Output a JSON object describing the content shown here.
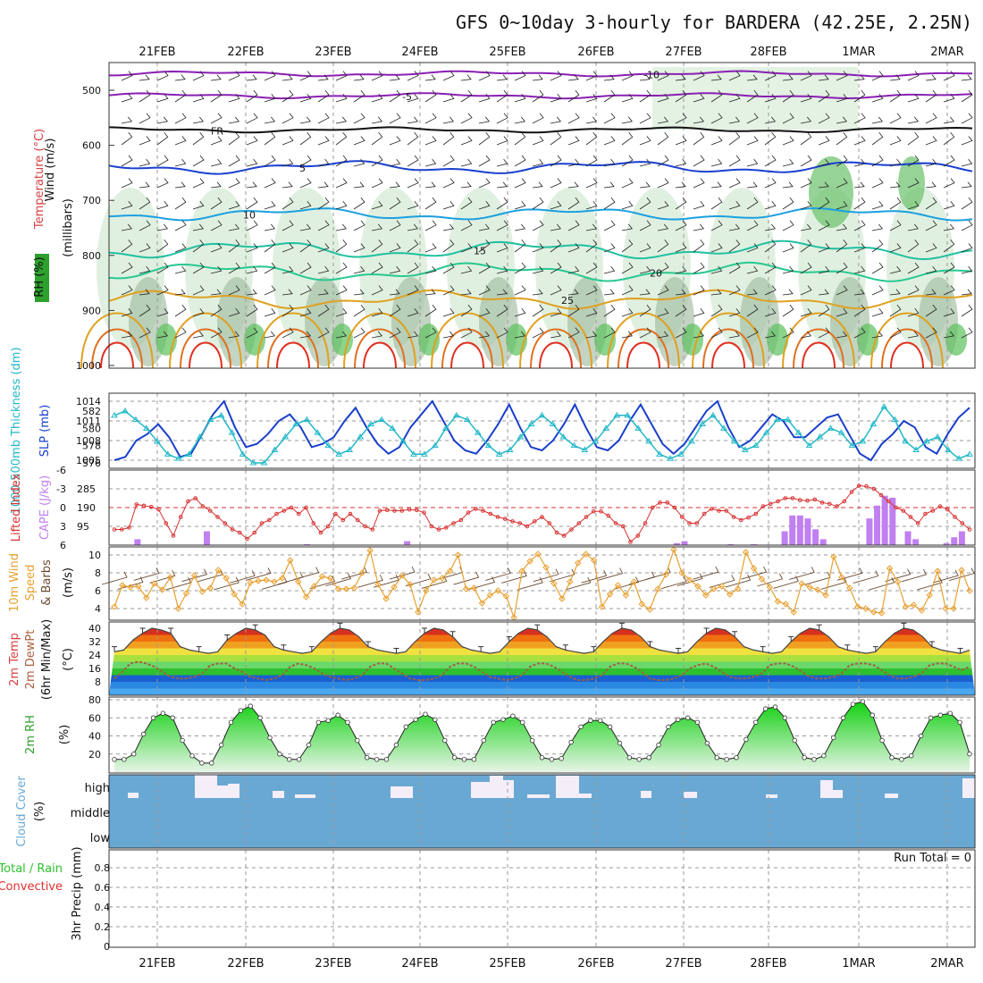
{
  "title": "GFS 0~10day 3-hourly for BARDERA (42.25E, 2.25N)",
  "dates": [
    "21FEB",
    "22FEB",
    "23FEB",
    "24FEB",
    "25FEB",
    "26FEB",
    "27FEB",
    "28FEB",
    "1MAR",
    "2MAR"
  ],
  "colors": {
    "rh_green": "#2ea02e",
    "temp_purple": "#8a1fb4",
    "temp_blue": "#1a3fd0",
    "temp_cyan": "#1aa0e0",
    "temp_teal": "#20c0a0",
    "temp_orange": "#e0a020",
    "temp_red": "#e03020",
    "slp_line": "#1a3fcc",
    "thickness_line": "#22b8c8",
    "lifted_line": "#d83030",
    "cape_bar": "#c080f0",
    "wind_line": "#e8a030",
    "barb": "#6a4a30",
    "cloud_fill": "#6aa8d4",
    "cloud_high": "#f4eef8",
    "precip_total": "#2ec02e",
    "precip_conv": "#e03030"
  },
  "panels": {
    "upper": {
      "ylabels": {
        "wind": "Wind (m/s)",
        "temp": "Temperature (°C)",
        "rh": "RH (%)",
        "mb": "(millibars)"
      },
      "yticks": [
        500,
        600,
        700,
        800,
        900,
        1000
      ],
      "contours": [
        {
          "label": "-10",
          "color": "#8a1fb4",
          "level": -10
        },
        {
          "label": "-5",
          "color": "#8a1fb4",
          "level": -5
        },
        {
          "label": "FR",
          "color": "#111111",
          "level": 0
        },
        {
          "label": "5",
          "color": "#1a3fd0",
          "level": 5
        },
        {
          "label": "10",
          "color": "#1aa0e0",
          "level": 10
        },
        {
          "label": "15",
          "color": "#20c0a0",
          "level": 15
        },
        {
          "label": "20",
          "color": "#20c0a0",
          "level": 20
        },
        {
          "label": "25",
          "color": "#e0a020",
          "level": 25
        }
      ]
    },
    "slp": {
      "ylabels": {
        "thickness": "1000-500mb Thickness (dm)",
        "slp": "SLP (mb)"
      },
      "left_ticks": [
        576,
        578,
        580,
        582
      ],
      "right_ticks": [
        1005,
        1008,
        1011,
        1014
      ],
      "slp_values": [
        1005,
        1005.5,
        1008,
        1009,
        1010.5,
        1008.5,
        1005.5,
        1006,
        1009,
        1012,
        1014,
        1010,
        1007,
        1007.5,
        1009,
        1011,
        1012,
        1010,
        1007,
        1007.5,
        1008.5,
        1011,
        1013,
        1010,
        1007.5,
        1006,
        1007,
        1010,
        1012,
        1014,
        1011,
        1008,
        1006.5,
        1006,
        1008,
        1010.5,
        1013.5,
        1010,
        1007,
        1006.5,
        1008,
        1010.5,
        1013.5,
        1010,
        1007,
        1006.5,
        1008,
        1011,
        1013.5,
        1010.5,
        1007.5,
        1006,
        1007.5,
        1010,
        1012.5,
        1014,
        1010,
        1007,
        1008,
        1010,
        1012,
        1011,
        1008.5,
        1008.5,
        1010,
        1011.5,
        1012,
        1009,
        1006,
        1005,
        1007.5,
        1009,
        1011,
        1010,
        1007,
        1006,
        1009,
        1011.5,
        1013
      ],
      "thickness_values": [
        581.5,
        582,
        581,
        580,
        578.5,
        577,
        576.5,
        577,
        579,
        581,
        581.5,
        579.5,
        577,
        576,
        576,
        577.5,
        579,
        580.5,
        581,
        579.5,
        578,
        577,
        577.5,
        579,
        580.5,
        581,
        580,
        578.5,
        577,
        577,
        578,
        580,
        581.5,
        581,
        579.5,
        578,
        577,
        577.5,
        579,
        580.5,
        581.5,
        580.5,
        579,
        578,
        577.5,
        578.5,
        580,
        581.5,
        581.5,
        580,
        578.5,
        577,
        576.5,
        577,
        578.5,
        580.5,
        581.5,
        580,
        578.5,
        577.5,
        578,
        579.5,
        581,
        581,
        579.5,
        578,
        579,
        580,
        579.5,
        578,
        578.5,
        580.5,
        582.5,
        581,
        578.5,
        577.5,
        578.5,
        579,
        577.5,
        576.5,
        577
      ]
    },
    "cape": {
      "ylabels": {
        "lifted": "Lifted Index",
        "cape": "CAPE (J/kg)"
      },
      "left_ticks": [
        -6,
        -3,
        0,
        3,
        6
      ],
      "right_ticks": [
        95,
        190,
        285
      ],
      "cape_values": [
        0,
        0,
        0,
        30,
        0,
        0,
        0,
        0,
        0,
        0,
        0,
        0,
        70,
        0,
        0,
        0,
        0,
        0,
        0,
        0,
        0,
        0,
        0,
        0,
        0,
        5,
        0,
        0,
        0,
        0,
        0,
        0,
        0,
        0,
        0,
        0,
        0,
        0,
        20,
        0,
        0,
        0,
        0,
        0,
        0,
        0,
        0,
        0,
        0,
        0,
        0,
        0,
        0,
        0,
        0,
        0,
        0,
        0,
        0,
        0,
        0,
        0,
        0,
        0,
        0,
        0,
        0,
        0,
        0,
        0,
        0,
        0,
        0,
        10,
        20,
        0,
        0,
        0,
        0,
        0,
        5,
        0,
        0,
        5,
        0,
        0,
        0,
        70,
        150,
        150,
        135,
        80,
        30,
        0,
        0,
        0,
        0,
        0,
        135,
        200,
        250,
        240,
        0,
        70,
        30,
        0,
        0,
        0,
        10,
        40,
        70,
        0
      ],
      "li_values": [
        3.5,
        3.5,
        3.2,
        -0.5,
        -0.3,
        -0.1,
        0.3,
        2.5,
        4.5,
        1.5,
        -1.0,
        -1.5,
        -0.2,
        0.5,
        1.5,
        2.5,
        3.5,
        4,
        5,
        4,
        2.5,
        2,
        1,
        0.5,
        0,
        1,
        0,
        2.5,
        4,
        3,
        1,
        2,
        1.0,
        2.0,
        3.0,
        3.5,
        0.5,
        0.4,
        0.5,
        0.5,
        0.3,
        0.4,
        0.8,
        3.0,
        3.5,
        3.2,
        2.5,
        2,
        0.8,
        0.2,
        0.5,
        1,
        1.5,
        1.8,
        2.2,
        2.5,
        3,
        2.2,
        1.5,
        2.5,
        4,
        4.5,
        3.5,
        2.5,
        1.5,
        0.6,
        0.6,
        1.3,
        2.5,
        3,
        5.5,
        4.5,
        2.5,
        0,
        -0.8,
        -0.8,
        0,
        1.5,
        2.5,
        2.5,
        1,
        0.2,
        0.5,
        0.5,
        1.5,
        2,
        1.6,
        1,
        -0.2,
        -0.6,
        -1,
        -1.5,
        -1.5,
        -1.2,
        -1.1,
        -1.3,
        -0.8,
        -0.6,
        -0.2,
        -1,
        -2.5,
        -3.5,
        -3.4,
        -3,
        -2,
        -1,
        0,
        0.5,
        1.5,
        2.5,
        1,
        0.5,
        -0.2,
        0.3,
        1.5,
        2.5,
        3.5
      ]
    },
    "wind10": {
      "ylabels": {
        "wind": "10m Wind",
        "speed": "Speed",
        "barbs": "& Barbs",
        "units": "(m/s)"
      },
      "yticks": [
        4,
        6,
        8,
        10
      ],
      "values": [
        4.2,
        6.6,
        6.4,
        6.5,
        5.2,
        6.8,
        6.1,
        7.5,
        4.0,
        5.7,
        7.7,
        5.9,
        6.3,
        8.3,
        7.4,
        5.6,
        4.5,
        6.9,
        7.1,
        7.2,
        7.0,
        7.4,
        9.4,
        7.0,
        5.3,
        6.5,
        7.6,
        7.4,
        6.2,
        6.2,
        6.3,
        8.0,
        10.5,
        6.7,
        5.1,
        6.4,
        7.7,
        6.7,
        3.6,
        6.0,
        7.2,
        7.4,
        8.2,
        10.0,
        6.2,
        6.3,
        4.6,
        5.5,
        6.0,
        5.4,
        3.0,
        8.2,
        9.3,
        10.1,
        8.6,
        6.8,
        5.1,
        7.0,
        9.1,
        10.1,
        9.4,
        4.2,
        5.6,
        6.6,
        5.5,
        7.0,
        4.5,
        3.9,
        6.2,
        7.8,
        10.6,
        8.0,
        7.2,
        6.5,
        5.5,
        6.2,
        6.5,
        5.6,
        6.2,
        10.3,
        8.5,
        7.3,
        6.4,
        4.8,
        4.5,
        3.6,
        6.8,
        6.4,
        6.1,
        5.5,
        9.8,
        7.5,
        6.3,
        4.2,
        4.0,
        3.6,
        3.5,
        8.5,
        7.0,
        4.2,
        4.4,
        3.8,
        5.5,
        8.2,
        4.0,
        4.0,
        8.3,
        6.0
      ]
    },
    "temp2m": {
      "ylabels": {
        "temp": "2m Temp",
        "dewpt": "2m DewPt",
        "minmax": "(6hr Min/Max)",
        "units": "(°C)"
      },
      "yticks": [
        8,
        16,
        24,
        32,
        40
      ],
      "temp_values": [
        26,
        27,
        33,
        37,
        40,
        39,
        37,
        29,
        27,
        26,
        25,
        26,
        33,
        37,
        40,
        39,
        36,
        29,
        27,
        26,
        25,
        26,
        32,
        37,
        40,
        39,
        35,
        29,
        27,
        26,
        25,
        26,
        32,
        37,
        40,
        39,
        35,
        29,
        27,
        26,
        25,
        26,
        32,
        37,
        40,
        39,
        35,
        29,
        27,
        26,
        25,
        26,
        32,
        37,
        40,
        39,
        35,
        29,
        27,
        26,
        25,
        26,
        32,
        37,
        40,
        39,
        35,
        29,
        27,
        26,
        25,
        26,
        32,
        37,
        40,
        39,
        35,
        29,
        27,
        26,
        25,
        26,
        32,
        37,
        40,
        39,
        35,
        29,
        27,
        26,
        25,
        27
      ],
      "dew_values": [
        10,
        14,
        19,
        20,
        19,
        17,
        14,
        11,
        10,
        10,
        11,
        13,
        18,
        19,
        19,
        16,
        14,
        11,
        10,
        9,
        10,
        12,
        17,
        19,
        18,
        16,
        13,
        11,
        10,
        9,
        10,
        12,
        17,
        19,
        19,
        16,
        13,
        10,
        9,
        9,
        10,
        12,
        17,
        19,
        19,
        17,
        14,
        11,
        10,
        9,
        10,
        12,
        17,
        19,
        19,
        17,
        14,
        11,
        9,
        9,
        10,
        12,
        17,
        19,
        19,
        17,
        14,
        10,
        9,
        9,
        10,
        12,
        16,
        18,
        19,
        17,
        14,
        11,
        10,
        10,
        11,
        13,
        18,
        19,
        19,
        17,
        14,
        11,
        10,
        10,
        11,
        13,
        18,
        19,
        19,
        18,
        15,
        12,
        10,
        10,
        11,
        13,
        18,
        19,
        19,
        17,
        15,
        17
      ]
    },
    "rh2m": {
      "ylabels": {
        "rh": "2m RH",
        "units": "(%)"
      },
      "yticks": [
        20,
        40,
        60,
        80
      ],
      "values": [
        14,
        14,
        20,
        42,
        60,
        65,
        60,
        35,
        18,
        10,
        10,
        30,
        55,
        68,
        73,
        60,
        38,
        20,
        14,
        14,
        30,
        55,
        57,
        63,
        55,
        35,
        16,
        14,
        14,
        30,
        50,
        58,
        64,
        58,
        35,
        16,
        14,
        14,
        35,
        55,
        58,
        62,
        55,
        35,
        16,
        14,
        15,
        33,
        50,
        57,
        57,
        50,
        32,
        16,
        14,
        16,
        30,
        50,
        58,
        60,
        55,
        32,
        16,
        14,
        16,
        36,
        55,
        70,
        72,
        60,
        35,
        16,
        14,
        18,
        38,
        60,
        75,
        78,
        63,
        35,
        16,
        14,
        18,
        40,
        60,
        63,
        65,
        55,
        20
      ]
    },
    "cloud": {
      "ylabels": {
        "cloud": "Cloud Cover",
        "units": "(%)"
      },
      "levels": {
        "high": "high",
        "middle": "middle",
        "low": "low"
      }
    },
    "precip": {
      "ylabels": {
        "total": "Total / Rain",
        "convective": "Convective",
        "precip": "3hr Precip (mm)"
      },
      "yticks": [
        "0",
        "0.2",
        "0.4",
        "0.6",
        "0.8"
      ],
      "run_total": "Run Total = 0"
    }
  }
}
